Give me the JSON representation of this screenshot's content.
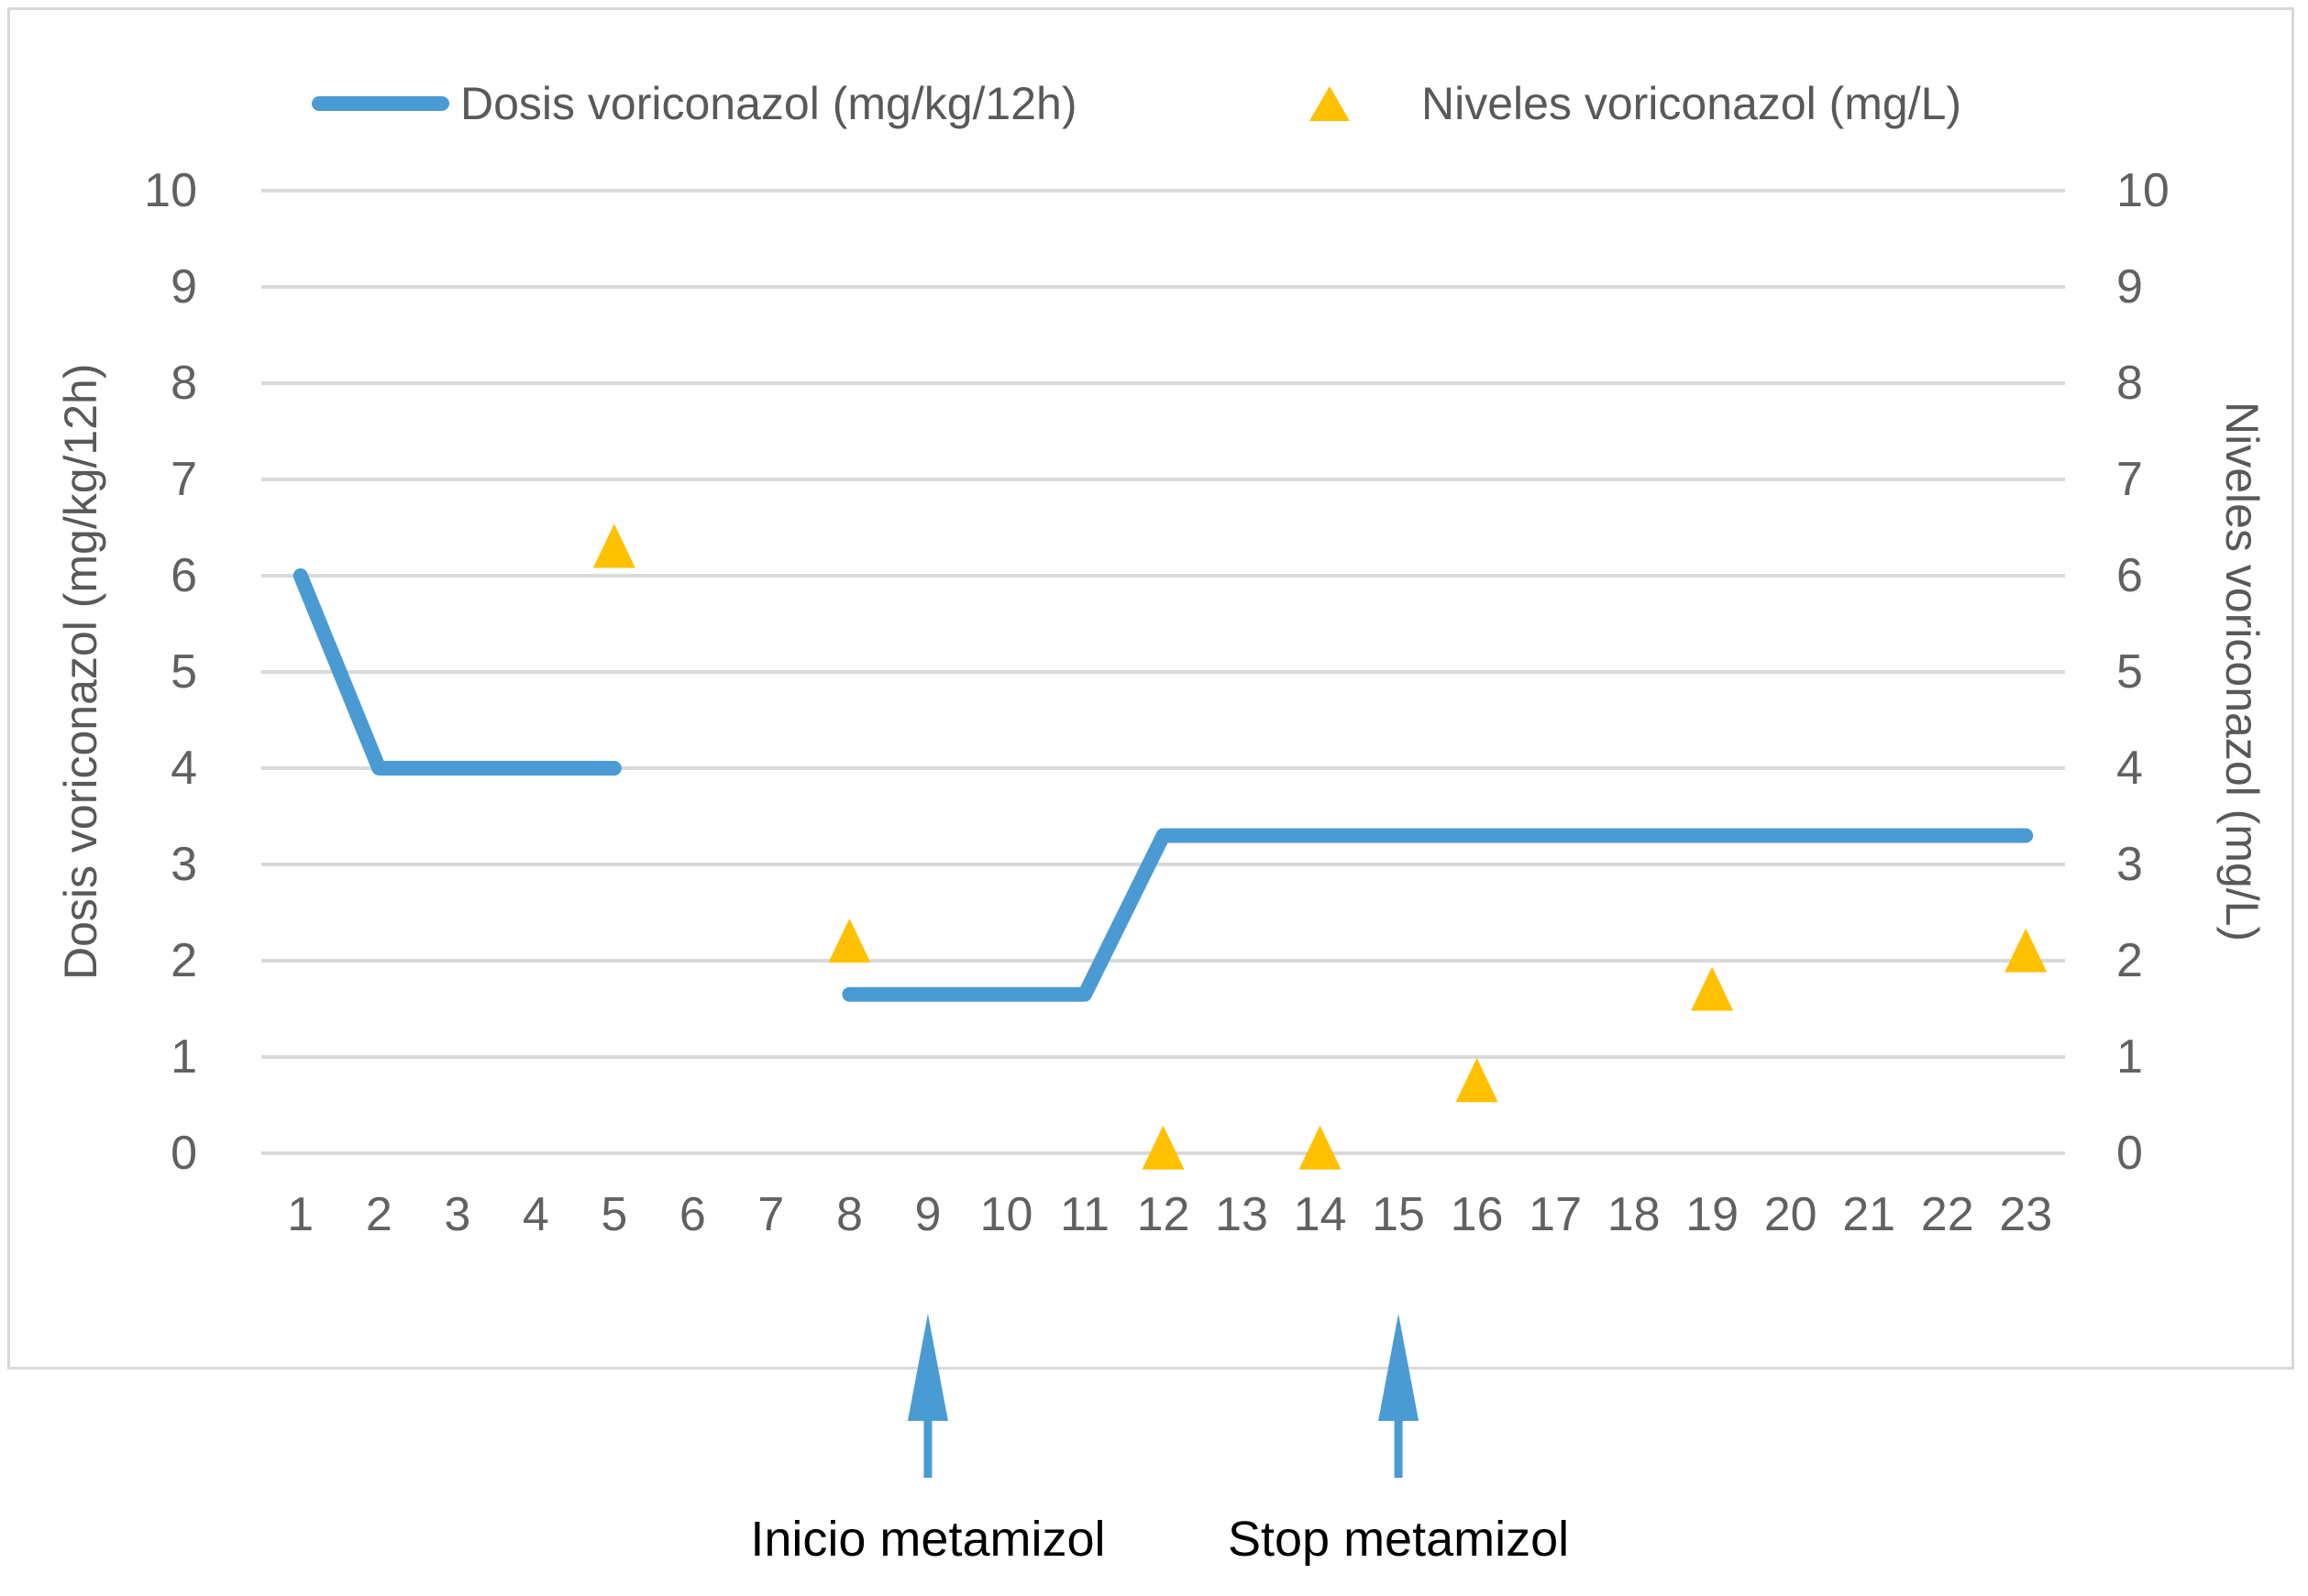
{
  "chart_data": {
    "type": "line",
    "title": "",
    "x": {
      "label": "",
      "categories": [
        1,
        2,
        3,
        4,
        5,
        6,
        7,
        8,
        9,
        10,
        11,
        12,
        13,
        14,
        15,
        16,
        17,
        18,
        19,
        20,
        21,
        22,
        23
      ]
    },
    "y_left": {
      "label": "Dosis voriconazol (mg/kg/12h)",
      "min": 0,
      "max": 10,
      "ticks": [
        0,
        1,
        2,
        3,
        4,
        5,
        6,
        7,
        8,
        9,
        10
      ]
    },
    "y_right": {
      "label": "Niveles voriconazol (mg/L)",
      "min": 0,
      "max": 10,
      "ticks": [
        0,
        1,
        2,
        3,
        4,
        5,
        6,
        7,
        8,
        9,
        10
      ]
    },
    "grid": true,
    "legend_position": "top",
    "series": [
      {
        "name": "Dosis voriconazol (mg/kg/12h)",
        "type": "line",
        "axis": "left",
        "color": "#4A9BD3",
        "segments": [
          [
            [
              1,
              6
            ],
            [
              2,
              4
            ],
            [
              5,
              4
            ]
          ],
          [
            [
              8,
              1.65
            ],
            [
              11,
              1.65
            ],
            [
              12,
              3.3
            ],
            [
              23,
              3.3
            ]
          ]
        ]
      },
      {
        "name": "Niveles voriconazol (mg/L)",
        "type": "scatter",
        "marker": "triangle",
        "axis": "right",
        "color": "#FFC000",
        "points": [
          [
            5,
            6.3
          ],
          [
            8,
            2.2
          ],
          [
            12,
            0.05
          ],
          [
            14,
            0.05
          ],
          [
            16,
            0.75
          ],
          [
            19,
            1.7
          ],
          [
            23,
            2.1
          ]
        ]
      }
    ],
    "annotations": [
      {
        "label": "Inicio metamizol",
        "x": 9
      },
      {
        "label": "Stop metamizol",
        "x": 15
      }
    ]
  },
  "colors": {
    "line_blue": "#4A9BD3",
    "marker_yellow": "#FFC000",
    "gridline": "#D9D9D9",
    "chart_border": "#D9D9D9",
    "tick_text": "#616161",
    "axis_title_text": "#595959",
    "annotation_text": "#000000"
  }
}
